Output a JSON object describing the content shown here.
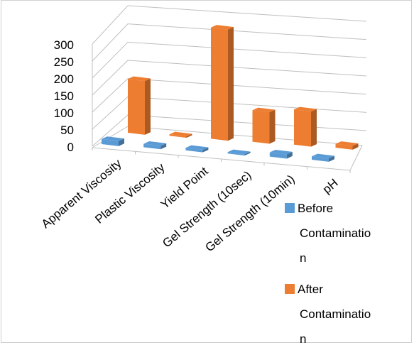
{
  "chart_data": {
    "type": "bar",
    "style": "3d-clustered-column",
    "categories": [
      "Apparent Viscosity",
      "Plastic Viscosity",
      "Yield Point",
      "Gel Strength (10sec)",
      "Gel Strength (10min)",
      "pH"
    ],
    "series": [
      {
        "name": "Before Contamination",
        "color": "#5B9BD5",
        "values": [
          12,
          8,
          6,
          2,
          10,
          8
        ]
      },
      {
        "name": "After Contamination",
        "color": "#ED7D31",
        "values": [
          145,
          3,
          300,
          85,
          95,
          10
        ]
      }
    ],
    "yticks": [
      "0",
      "50",
      "100",
      "150",
      "200",
      "250",
      "300"
    ],
    "ylim": [
      0,
      300
    ],
    "grid": true,
    "legend_position": "right",
    "legend_lines": [
      [
        "Before",
        "Contaminatio",
        "n"
      ],
      [
        "After",
        "Contaminatio",
        "n"
      ]
    ]
  }
}
